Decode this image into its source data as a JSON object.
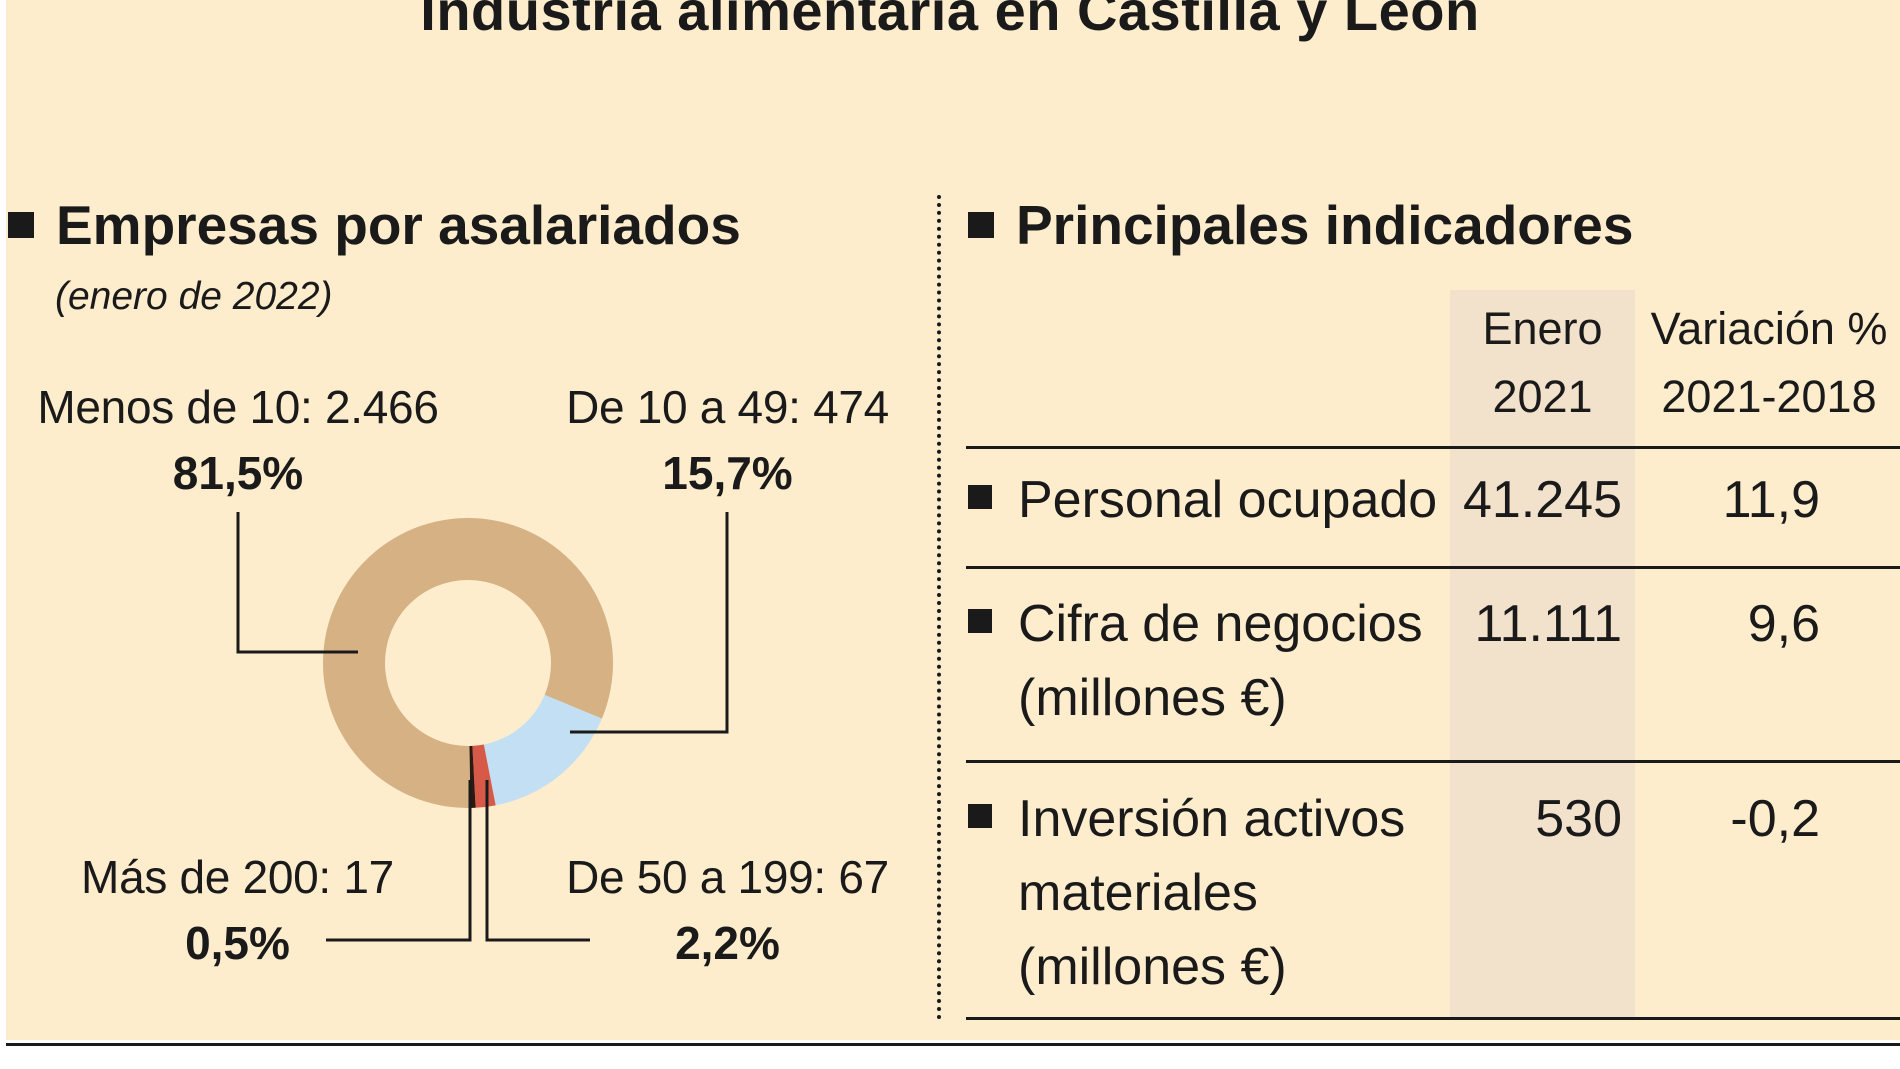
{
  "title": "Industria alimentaria en Castilla y León",
  "left": {
    "heading": "Empresas por asalariados",
    "subheading": "(enero de 2022)"
  },
  "right": {
    "heading": "Principales indicadores",
    "col1": [
      "Enero",
      "2021"
    ],
    "col2": [
      "Variación %",
      "2021-2018"
    ],
    "rows": [
      {
        "label": [
          "Personal ocupado"
        ],
        "value": "41.245",
        "change": "11,9"
      },
      {
        "label": [
          "Cifra de negocios",
          "(millones €)"
        ],
        "value": "11.111",
        "change": "9,6"
      },
      {
        "label": [
          "Inversión activos",
          "materiales",
          "(millones €)"
        ],
        "value": "530",
        "change": "-0,2"
      }
    ]
  },
  "chart_data": {
    "type": "pie",
    "title": "Empresas por asalariados",
    "subtitle": "(enero de 2022)",
    "slices": [
      {
        "label": "Menos de 10: 2.466",
        "value": 2466,
        "percent_label": "81,5%",
        "percent": 81.5,
        "color": "#d6b184"
      },
      {
        "label": "De 10 a 49: 474",
        "value": 474,
        "percent_label": "15,7%",
        "percent": 15.7,
        "color": "#c2dff3"
      },
      {
        "label": "De 50 a 199: 67",
        "value": 67,
        "percent_label": "2,2%",
        "percent": 2.2,
        "color": "#d75a49"
      },
      {
        "label": "Más de 200: 17",
        "value": 17,
        "percent_label": "0,5%",
        "percent": 0.5,
        "color": "#2a1a12"
      }
    ]
  }
}
